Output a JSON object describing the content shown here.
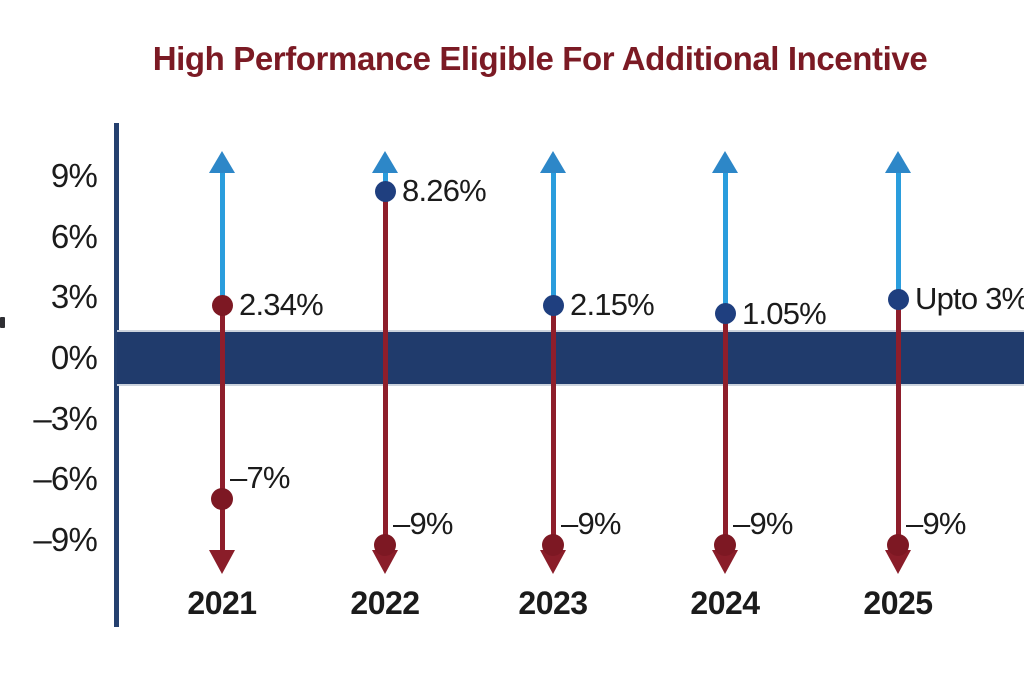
{
  "title": {
    "text": "High Performance Eligible For Additional Incentive",
    "color": "#7b1a24"
  },
  "colors": {
    "band": "#203b6c",
    "band_edge": "#ccd3dd",
    "axis": "#24406f",
    "blue_shaft": "#2a9ddd",
    "blue_arrow": "#2d87c8",
    "navy_dot": "#1f3f7f",
    "maroon_shaft": "#8e1e2b",
    "maroon_arrow": "#8a1d29",
    "maroon_dot": "#7d1823",
    "text": "#1b1b1b"
  },
  "y_axis": {
    "ticks": [
      {
        "label": "9%",
        "value": 9
      },
      {
        "label": "6%",
        "value": 6
      },
      {
        "label": "3%",
        "value": 3
      },
      {
        "label": "0%",
        "value": 0
      },
      {
        "label": "–3%",
        "value": -3
      },
      {
        "label": "–6%",
        "value": -6
      },
      {
        "label": "–9%",
        "value": -9
      }
    ]
  },
  "chart_data": {
    "type": "scatter",
    "subtype": "up-down-arrow-range",
    "title": "High Performance Eligible For Additional Incentive",
    "categories": [
      "2021",
      "2022",
      "2023",
      "2024",
      "2025"
    ],
    "series": [
      {
        "name": "additional-incentive-upside",
        "labels": [
          "2.34%",
          "8.26%",
          "2.15%",
          "1.05%",
          "Upto 3%"
        ],
        "values": [
          2.34,
          8.26,
          2.15,
          1.05,
          3
        ],
        "plotted_values": [
          2.6,
          8.26,
          2.6,
          2.2,
          2.9
        ],
        "dot_colors": [
          "maroon",
          "navy",
          "navy",
          "navy",
          "navy"
        ]
      },
      {
        "name": "downside",
        "labels": [
          "–7%",
          "–9%",
          "–9%",
          "–9%",
          "–9%"
        ],
        "values": [
          -7,
          -9,
          -9,
          -9,
          -9
        ],
        "plotted_values": [
          -7.0,
          -9.25,
          -9.25,
          -9.25,
          -9.25
        ]
      }
    ],
    "ylim": [
      -10.8,
      10.3
    ],
    "yticks": [
      "9%",
      "6%",
      "3%",
      "0%",
      "-3%",
      "-6%",
      "-9%"
    ],
    "grid": false,
    "legend": null,
    "neutral_band": {
      "from": -1.4,
      "to": 1.4
    },
    "arrows": {
      "up_to": 10.2,
      "down_to": -10.7
    }
  }
}
